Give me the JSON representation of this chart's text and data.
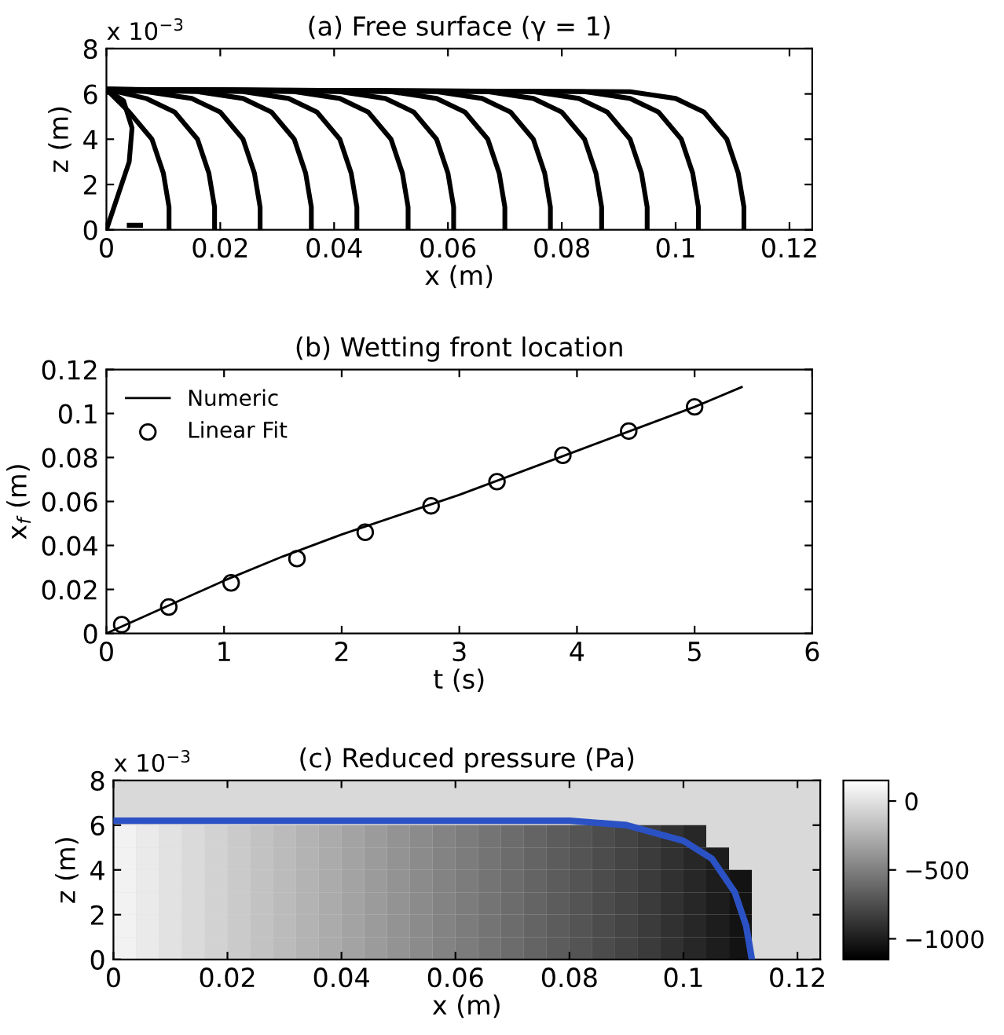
{
  "chart_data": [
    {
      "type": "line",
      "title": "(a) Free surface (γ = 1)",
      "xlabel": "x (m)",
      "ylabel": "z (m)",
      "annotations": [
        "x 10$^{−3}$"
      ],
      "xlim": [
        0,
        0.124
      ],
      "xticks": [
        0,
        0.02,
        0.04,
        0.06,
        0.08,
        0.1,
        0.12
      ],
      "ylim": [
        0,
        8
      ],
      "yticks": [
        0,
        2,
        4,
        6,
        8
      ],
      "series": [
        {
          "color": "#000000",
          "x": [
            0,
            0.002,
            0.004,
            0.0045,
            0.003,
            0
          ],
          "values": [
            0,
            1.5,
            3,
            4.5,
            5.7,
            6.2
          ]
        },
        {
          "color": "#000000",
          "x": [
            0.004,
            0.006
          ],
          "values": [
            0.2,
            0.2
          ]
        },
        {
          "color": "#000000",
          "x": [
            0,
            0.004,
            0.008,
            0.01,
            0.011,
            0.011
          ],
          "values": [
            6.2,
            5.2,
            4,
            2.5,
            1,
            0
          ]
        },
        {
          "color": "#000000",
          "x": [
            0,
            0.007,
            0.012,
            0.016,
            0.018,
            0.019,
            0.019
          ],
          "values": [
            6.2,
            5.8,
            5.2,
            4,
            2.5,
            1,
            0
          ]
        },
        {
          "color": "#000000",
          "x": [
            0,
            0.007,
            0.015,
            0.02,
            0.024,
            0.026,
            0.027,
            0.027
          ],
          "values": [
            6.2,
            6.1,
            5.8,
            5.2,
            4,
            2.5,
            1,
            0
          ]
        },
        {
          "color": "#000000",
          "x": [
            0,
            0.016,
            0.024,
            0.029,
            0.033,
            0.035,
            0.036,
            0.036
          ],
          "values": [
            6.2,
            6.1,
            5.8,
            5.2,
            4,
            2.5,
            1,
            0
          ]
        },
        {
          "color": "#000000",
          "x": [
            0,
            0.024,
            0.032,
            0.037,
            0.041,
            0.043,
            0.044,
            0.044
          ],
          "values": [
            6.2,
            6.1,
            5.8,
            5.2,
            4,
            2.5,
            1,
            0
          ]
        },
        {
          "color": "#000000",
          "x": [
            0,
            0.033,
            0.041,
            0.046,
            0.05,
            0.052,
            0.053,
            0.053
          ],
          "values": [
            6.2,
            6.1,
            5.8,
            5.2,
            4,
            2.5,
            1,
            0
          ]
        },
        {
          "color": "#000000",
          "x": [
            0,
            0.041,
            0.049,
            0.054,
            0.058,
            0.06,
            0.061,
            0.061
          ],
          "values": [
            6.2,
            6.1,
            5.8,
            5.2,
            4,
            2.5,
            1,
            0
          ]
        },
        {
          "color": "#000000",
          "x": [
            0,
            0.05,
            0.058,
            0.063,
            0.067,
            0.069,
            0.07,
            0.07
          ],
          "values": [
            6.2,
            6.1,
            5.8,
            5.2,
            4,
            2.5,
            1,
            0
          ]
        },
        {
          "color": "#000000",
          "x": [
            0,
            0.058,
            0.066,
            0.071,
            0.075,
            0.077,
            0.078,
            0.078
          ],
          "values": [
            6.2,
            6.1,
            5.8,
            5.2,
            4,
            2.5,
            1,
            0
          ]
        },
        {
          "color": "#000000",
          "x": [
            0,
            0.067,
            0.075,
            0.08,
            0.084,
            0.086,
            0.087,
            0.087
          ],
          "values": [
            6.2,
            6.1,
            5.8,
            5.2,
            4,
            2.5,
            1,
            0
          ]
        },
        {
          "color": "#000000",
          "x": [
            0,
            0.075,
            0.083,
            0.088,
            0.092,
            0.094,
            0.095,
            0.095
          ],
          "values": [
            6.2,
            6.1,
            5.8,
            5.2,
            4,
            2.5,
            1,
            0
          ]
        },
        {
          "color": "#000000",
          "x": [
            0,
            0.084,
            0.092,
            0.097,
            0.101,
            0.103,
            0.104,
            0.104
          ],
          "values": [
            6.2,
            6.1,
            5.8,
            5.2,
            4,
            2.5,
            1,
            0
          ]
        },
        {
          "color": "#000000",
          "x": [
            0,
            0.092,
            0.1,
            0.105,
            0.109,
            0.111,
            0.112,
            0.112
          ],
          "values": [
            6.2,
            6.1,
            5.8,
            5.2,
            4,
            2.5,
            1,
            0
          ]
        }
      ]
    },
    {
      "type": "line",
      "title": "(b) Wetting front location",
      "xlabel": "t (s)",
      "ylabel": "x$_{f}$ (m)",
      "legend": "top left",
      "xlim": [
        0,
        6
      ],
      "xticks": [
        0,
        1,
        2,
        3,
        4,
        5,
        6
      ],
      "ylim": [
        0,
        0.12
      ],
      "yticks": [
        0,
        0.02,
        0.04,
        0.06,
        0.08,
        0.1,
        0.12
      ],
      "series": [
        {
          "name": "Numeric",
          "type": "line",
          "marker": "none",
          "color": "#000000",
          "x": [
            0,
            0.5,
            1,
            1.5,
            2,
            2.5,
            3,
            3.5,
            4,
            4.5,
            5,
            5.4
          ],
          "values": [
            0,
            0.012,
            0.024,
            0.035,
            0.045,
            0.054,
            0.063,
            0.073,
            0.083,
            0.093,
            0.103,
            0.112
          ]
        },
        {
          "name": "Linear Fit",
          "type": "scatter",
          "marker": "circle",
          "color": "#000000",
          "x": [
            0.13,
            0.53,
            1.06,
            1.62,
            2.2,
            2.76,
            3.32,
            3.88,
            4.44,
            5.0
          ],
          "values": [
            0.004,
            0.012,
            0.023,
            0.034,
            0.046,
            0.058,
            0.069,
            0.081,
            0.092,
            0.103
          ]
        }
      ]
    },
    {
      "type": "heatmap",
      "title": "(c) Reduced pressure (Pa)",
      "xlabel": "x (m)",
      "ylabel": "z (m)",
      "annotations": [
        "x 10$^{−3}$"
      ],
      "xlim": [
        0,
        0.124
      ],
      "xticks": [
        0,
        0.02,
        0.04,
        0.06,
        0.08,
        0.1,
        0.12
      ],
      "ylim": [
        0,
        8
      ],
      "yticks": [
        0,
        2,
        4,
        6,
        8
      ],
      "x": [
        0.002,
        0.006,
        0.01,
        0.014,
        0.018,
        0.022,
        0.026,
        0.03,
        0.034,
        0.038,
        0.042,
        0.046,
        0.05,
        0.054,
        0.058,
        0.062,
        0.066,
        0.07,
        0.074,
        0.078,
        0.082,
        0.086,
        0.09,
        0.094,
        0.098,
        0.102,
        0.106,
        0.11
      ],
      "y": [
        5.5,
        4.5,
        3.5,
        2.5,
        1.5,
        0.5
      ],
      "cells": [
        [
          80,
          40,
          0,
          -40,
          -80,
          -120,
          -160,
          -200,
          -240,
          -280,
          -320,
          -360,
          -400,
          -440,
          -480,
          -520,
          -560,
          -600,
          -640,
          -680,
          -720,
          -760,
          -800,
          -850,
          -900,
          -950,
          null,
          null
        ],
        [
          80,
          40,
          0,
          -40,
          -80,
          -120,
          -160,
          -200,
          -240,
          -280,
          -320,
          -360,
          -400,
          -440,
          -480,
          -520,
          -560,
          -600,
          -640,
          -680,
          -720,
          -760,
          -800,
          -850,
          -900,
          -950,
          -1000,
          null
        ],
        [
          80,
          40,
          0,
          -40,
          -80,
          -120,
          -160,
          -200,
          -240,
          -280,
          -320,
          -360,
          -400,
          -440,
          -480,
          -520,
          -560,
          -600,
          -640,
          -680,
          -720,
          -760,
          -800,
          -850,
          -900,
          -950,
          -1000,
          -1050
        ],
        [
          80,
          40,
          0,
          -40,
          -80,
          -120,
          -160,
          -200,
          -240,
          -280,
          -320,
          -360,
          -400,
          -440,
          -480,
          -520,
          -560,
          -600,
          -640,
          -680,
          -720,
          -760,
          -800,
          -850,
          -900,
          -950,
          -1000,
          -1050
        ],
        [
          80,
          40,
          0,
          -40,
          -80,
          -120,
          -160,
          -200,
          -240,
          -280,
          -320,
          -360,
          -400,
          -440,
          -480,
          -520,
          -560,
          -600,
          -640,
          -680,
          -720,
          -760,
          -800,
          -850,
          -900,
          -950,
          -1000,
          -1050
        ],
        [
          80,
          40,
          0,
          -40,
          -80,
          -120,
          -160,
          -200,
          -240,
          -280,
          -320,
          -360,
          -400,
          -440,
          -480,
          -520,
          -560,
          -600,
          -640,
          -680,
          -720,
          -760,
          -800,
          -850,
          -900,
          -950,
          -1000,
          -1050
        ]
      ],
      "clim": [
        -1150,
        150
      ],
      "cticks": [
        0,
        {
          "value": -500,
          "label": "−500"
        },
        {
          "value": -1000,
          "label": "−1000"
        }
      ],
      "series": [
        {
          "type": "line",
          "color": "#2b52c4",
          "x": [
            0,
            0.04,
            0.08,
            0.09,
            0.1,
            0.105,
            0.109,
            0.111,
            0.112
          ],
          "values": [
            6.2,
            6.2,
            6.2,
            6.0,
            5.3,
            4.5,
            3.0,
            1.5,
            0
          ]
        }
      ]
    }
  ]
}
